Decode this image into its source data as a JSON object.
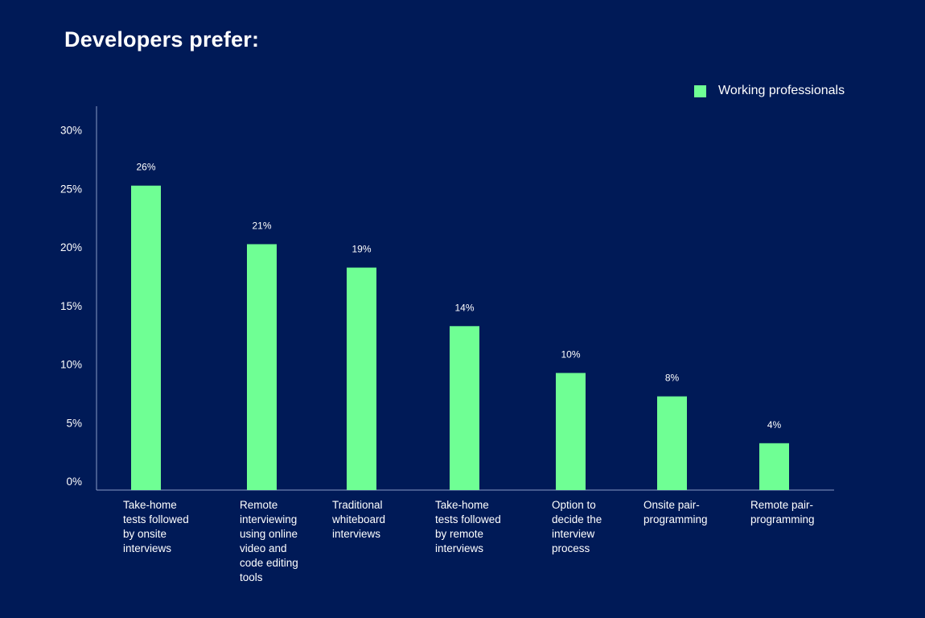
{
  "chart_data": {
    "type": "bar",
    "title": "Developers prefer:",
    "categories": [
      "Take-home tests followed by onsite interviews",
      "Remote interviewing using online video and code editing tools",
      "Traditional whiteboard interviews",
      "Take-home tests followed by remote interviews",
      "Option to decide the interview process",
      "Onsite pair-programming",
      "Remote pair-programming"
    ],
    "category_lines": [
      [
        "Take-home",
        "tests followed",
        "by onsite",
        "interviews"
      ],
      [
        "Remote",
        "interviewing",
        "using online",
        "video and",
        "code editing",
        "tools"
      ],
      [
        "Traditional",
        "whiteboard",
        "interviews"
      ],
      [
        "Take-home",
        "tests followed",
        "by remote",
        "interviews"
      ],
      [
        "Option to",
        "decide the",
        "interview",
        "process"
      ],
      [
        "Onsite pair-",
        "programming"
      ],
      [
        "Remote pair-",
        "programming"
      ]
    ],
    "series": [
      {
        "name": "Working professionals",
        "values": [
          26,
          21,
          19,
          14,
          10,
          8,
          4
        ]
      }
    ],
    "data_labels": [
      "26%",
      "21%",
      "19%",
      "14%",
      "10%",
      "8%",
      "4%"
    ],
    "yticks": [
      0,
      5,
      10,
      15,
      20,
      25,
      30
    ],
    "ytick_labels": [
      "0%",
      "5%",
      "10%",
      "15%",
      "20%",
      "25%",
      "30%"
    ],
    "ylim": [
      0,
      32
    ],
    "xlabel": "",
    "ylabel": "",
    "legend_position": "top-right",
    "grid": false
  },
  "colors": {
    "background": "#001a57",
    "bar": "#6fff94",
    "axis": "#8a9bc4",
    "text": "#ffffff"
  }
}
